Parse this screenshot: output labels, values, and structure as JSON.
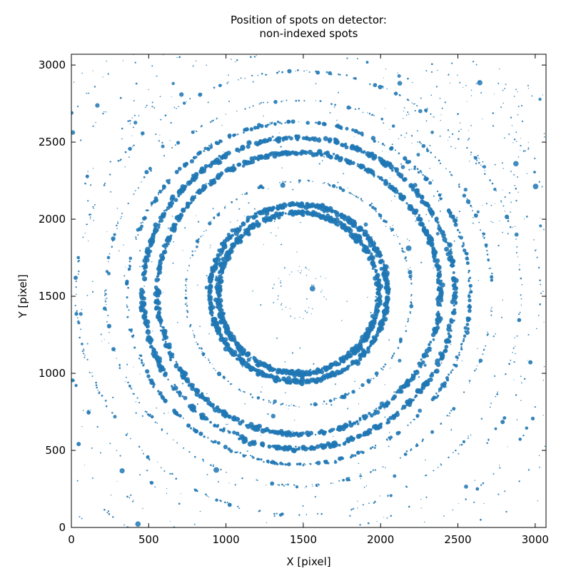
{
  "chart_data": {
    "type": "scatter",
    "title": "Position of spots on detector:",
    "subtitle": "non-indexed spots",
    "xlabel": "X [pixel]",
    "ylabel": "Y [pixel]",
    "xlim": [
      0,
      3070
    ],
    "ylim": [
      0,
      3070
    ],
    "xticks": [
      0,
      500,
      1000,
      1500,
      2000,
      2500,
      3000
    ],
    "yticks": [
      0,
      500,
      1000,
      1500,
      2000,
      2500,
      3000
    ],
    "grid": false,
    "legend": "none",
    "point_color": "#1f77b4",
    "ring_center": [
      1470,
      1520
    ],
    "rings": [
      {
        "radius": 520,
        "density": "very high",
        "spread": 12
      },
      {
        "radius": 575,
        "density": "very high",
        "spread": 10
      },
      {
        "radius": 730,
        "density": "medium",
        "spread": 6
      },
      {
        "radius": 915,
        "density": "very high",
        "spread": 10
      },
      {
        "radius": 1010,
        "density": "very high",
        "spread": 10
      },
      {
        "radius": 1110,
        "density": "high",
        "spread": 7
      },
      {
        "radius": 1250,
        "density": "medium",
        "spread": 6
      },
      {
        "radius": 1440,
        "density": "medium",
        "spread": 6
      },
      {
        "radius": 1560,
        "density": "low",
        "spread": 6
      },
      {
        "radius": 1720,
        "density": "low",
        "spread": 6
      },
      {
        "radius": 1880,
        "density": "low",
        "spread": 6
      }
    ],
    "scatter_noise": "sparse isolated spots across the detector, denser near the upper right"
  }
}
